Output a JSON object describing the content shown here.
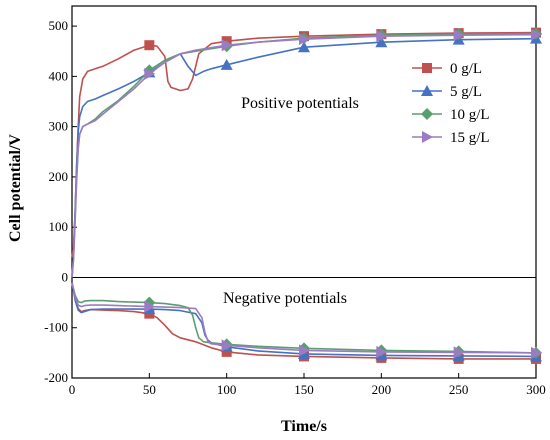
{
  "chart_data": {
    "type": "line",
    "title": "",
    "xlabel": "Time/s",
    "ylabel": "Cell potential/V",
    "xlim": [
      0,
      300
    ],
    "ylim": [
      -200,
      540
    ],
    "xticks": [
      0,
      50,
      100,
      150,
      200,
      250,
      300
    ],
    "yticks": [
      -200,
      -100,
      0,
      100,
      200,
      300,
      400,
      500
    ],
    "grid": false,
    "legend_position": "right",
    "annotations": [
      {
        "text": "Positive potentials",
        "x": 180,
        "y": 355
      },
      {
        "text": "Negative potentials",
        "x": 180,
        "y": -40
      }
    ],
    "series": [
      {
        "name": "0 g/L",
        "color": "#c0504d",
        "marker": "square",
        "marker_x": [
          50,
          100,
          150,
          200,
          250,
          300
        ],
        "positive": {
          "x": [
            0,
            1,
            2,
            3,
            4,
            5,
            7,
            10,
            15,
            20,
            30,
            40,
            50,
            55,
            60,
            62,
            64,
            70,
            75,
            78,
            82,
            90,
            100,
            120,
            150,
            200,
            250,
            300
          ],
          "y": [
            40,
            60,
            130,
            220,
            300,
            360,
            395,
            410,
            415,
            420,
            435,
            452,
            462,
            460,
            440,
            390,
            378,
            372,
            375,
            395,
            445,
            465,
            470,
            476,
            480,
            484,
            486,
            487
          ]
        },
        "negative": {
          "x": [
            0,
            2,
            4,
            6,
            8,
            12,
            20,
            30,
            40,
            50,
            55,
            60,
            65,
            70,
            80,
            90,
            100,
            120,
            150,
            200,
            250,
            300
          ],
          "y": [
            -10,
            -40,
            -62,
            -68,
            -66,
            -64,
            -65,
            -66,
            -68,
            -72,
            -80,
            -95,
            -112,
            -120,
            -128,
            -140,
            -148,
            -154,
            -157,
            -160,
            -162,
            -162
          ]
        }
      },
      {
        "name": "5 g/L",
        "color": "#4472c4",
        "marker": "triangle",
        "marker_x": [
          50,
          100,
          150,
          200,
          250,
          300
        ],
        "positive": {
          "x": [
            0,
            1,
            2,
            3,
            4,
            5,
            7,
            10,
            15,
            20,
            30,
            40,
            50,
            60,
            70,
            75,
            80,
            85,
            90,
            100,
            120,
            150,
            200,
            250,
            300
          ],
          "y": [
            0,
            40,
            130,
            220,
            290,
            320,
            340,
            350,
            355,
            362,
            375,
            390,
            408,
            428,
            445,
            420,
            402,
            410,
            415,
            423,
            438,
            458,
            468,
            473,
            475
          ]
        },
        "negative": {
          "x": [
            0,
            2,
            4,
            6,
            8,
            12,
            20,
            30,
            40,
            50,
            60,
            70,
            80,
            84,
            86,
            88,
            90,
            100,
            120,
            150,
            200,
            250,
            300
          ],
          "y": [
            -10,
            -45,
            -65,
            -70,
            -68,
            -64,
            -63,
            -63,
            -63,
            -63,
            -64,
            -66,
            -72,
            -90,
            -115,
            -125,
            -130,
            -138,
            -146,
            -152,
            -155,
            -156,
            -157
          ]
        }
      },
      {
        "name": "10 g/L",
        "color": "#5b9e6e",
        "marker": "diamond",
        "marker_x": [
          50,
          100,
          150,
          200,
          250,
          300
        ],
        "positive": {
          "x": [
            0,
            1,
            2,
            3,
            4,
            5,
            7,
            10,
            15,
            20,
            30,
            40,
            50,
            60,
            70,
            80,
            90,
            100,
            120,
            150,
            200,
            250,
            300
          ],
          "y": [
            0,
            40,
            120,
            200,
            260,
            285,
            300,
            305,
            315,
            330,
            352,
            380,
            412,
            432,
            445,
            450,
            455,
            460,
            468,
            476,
            482,
            484,
            485
          ]
        },
        "negative": {
          "x": [
            0,
            2,
            4,
            6,
            8,
            12,
            20,
            30,
            40,
            50,
            60,
            70,
            75,
            78,
            80,
            82,
            85,
            90,
            100,
            120,
            150,
            200,
            250,
            300
          ],
          "y": [
            -10,
            -35,
            -48,
            -50,
            -47,
            -46,
            -46,
            -48,
            -49,
            -50,
            -52,
            -56,
            -60,
            -75,
            -100,
            -120,
            -128,
            -130,
            -133,
            -137,
            -141,
            -145,
            -147,
            -150
          ]
        }
      },
      {
        "name": "15 g/L",
        "color": "#9b7bc4",
        "marker": "triangle-right",
        "marker_x": [
          50,
          100,
          150,
          200,
          250,
          300
        ],
        "positive": {
          "x": [
            0,
            1,
            2,
            3,
            4,
            5,
            7,
            10,
            15,
            20,
            30,
            40,
            50,
            60,
            70,
            80,
            90,
            100,
            120,
            150,
            200,
            250,
            300
          ],
          "y": [
            0,
            35,
            110,
            190,
            255,
            285,
            300,
            305,
            312,
            325,
            350,
            375,
            405,
            428,
            445,
            452,
            457,
            462,
            468,
            474,
            480,
            482,
            483
          ]
        },
        "negative": {
          "x": [
            0,
            2,
            4,
            6,
            8,
            12,
            20,
            30,
            40,
            50,
            60,
            70,
            80,
            84,
            86,
            88,
            90,
            100,
            120,
            150,
            200,
            250,
            300
          ],
          "y": [
            -10,
            -40,
            -55,
            -58,
            -56,
            -55,
            -55,
            -56,
            -57,
            -58,
            -59,
            -60,
            -62,
            -80,
            -110,
            -128,
            -132,
            -135,
            -140,
            -145,
            -148,
            -149,
            -150
          ]
        }
      }
    ]
  }
}
